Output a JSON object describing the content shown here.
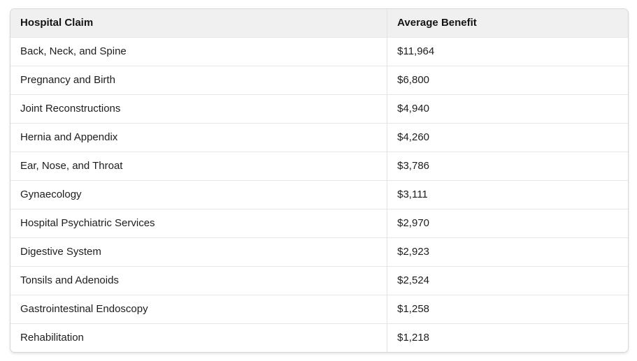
{
  "table": {
    "columns": [
      "Hospital Claim",
      "Average Benefit"
    ],
    "rows": [
      [
        "Back, Neck, and Spine",
        "$11,964"
      ],
      [
        "Pregnancy and Birth",
        "$6,800"
      ],
      [
        "Joint Reconstructions",
        "$4,940"
      ],
      [
        "Hernia and Appendix",
        "$4,260"
      ],
      [
        "Ear, Nose, and Throat",
        "$3,786"
      ],
      [
        "Gynaecology",
        "$3,111"
      ],
      [
        "Hospital Psychiatric Services",
        "$2,970"
      ],
      [
        "Digestive System",
        "$2,923"
      ],
      [
        "Tonsils and Adenoids",
        "$2,524"
      ],
      [
        "Gastrointestinal Endoscopy",
        "$1,258"
      ],
      [
        "Rehabilitation",
        "$1,218"
      ]
    ]
  },
  "chart_data": {
    "type": "table",
    "title": "",
    "columns": [
      "Hospital Claim",
      "Average Benefit"
    ],
    "categories": [
      "Back, Neck, and Spine",
      "Pregnancy and Birth",
      "Joint Reconstructions",
      "Hernia and Appendix",
      "Ear, Nose, and Throat",
      "Gynaecology",
      "Hospital Psychiatric Services",
      "Digestive System",
      "Tonsils and Adenoids",
      "Gastrointestinal Endoscopy",
      "Rehabilitation"
    ],
    "values": [
      11964,
      6800,
      4940,
      4260,
      3786,
      3111,
      2970,
      2923,
      2524,
      1258,
      1218
    ],
    "value_format": "USD"
  },
  "colors": {
    "header_bg": "#f0f0f0",
    "outer_border": "#d8d8d8",
    "row_divider": "#e7e7e7",
    "column_divider": "#e2e2e2",
    "text": "#1d1d1d",
    "row_bg": "#ffffff"
  }
}
